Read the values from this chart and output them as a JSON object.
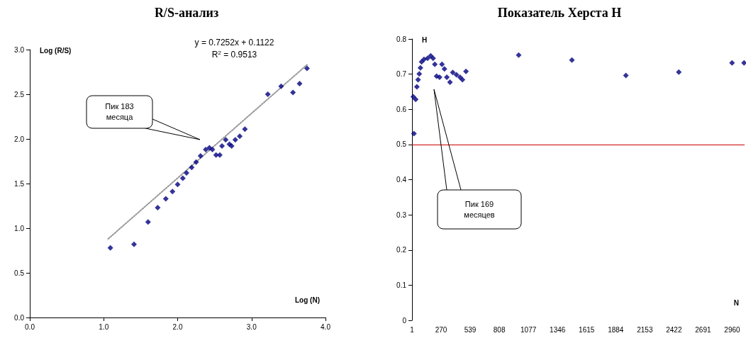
{
  "chart_data": [
    {
      "type": "scatter",
      "title": "R/S-анализ",
      "xlabel": "Log (N)",
      "ylabel": "Log (R/S)",
      "xlim": [
        0,
        4
      ],
      "xticks": [
        {
          "value": 0,
          "label": "0.0"
        },
        {
          "value": 1,
          "label": "1.0"
        },
        {
          "value": 2,
          "label": "2.0"
        },
        {
          "value": 3,
          "label": "3.0"
        },
        {
          "value": 4,
          "label": "4.0"
        }
      ],
      "ylim": [
        0,
        3
      ],
      "yticks": [
        {
          "value": 0,
          "label": "0.0"
        },
        0.5,
        {
          "value": 1,
          "label": "1.0"
        },
        1.5,
        {
          "value": 2,
          "label": "2.0"
        },
        2.5,
        {
          "value": 3,
          "label": "3.0"
        }
      ],
      "grid": false,
      "series": [
        {
          "marker": "diamond",
          "color": "#000080",
          "x": [
            1.09,
            1.41,
            1.6,
            1.73,
            1.84,
            1.93,
            2.0,
            2.07,
            2.12,
            2.19,
            2.25,
            2.31,
            2.38,
            2.43,
            2.47,
            2.52,
            2.57,
            2.6,
            2.65,
            2.7,
            2.73,
            2.78,
            2.84,
            2.91,
            3.22,
            3.4,
            3.56,
            3.65,
            3.75
          ],
          "values": [
            0.78,
            0.82,
            1.07,
            1.23,
            1.33,
            1.41,
            1.49,
            1.56,
            1.62,
            1.68,
            1.74,
            1.81,
            1.88,
            1.9,
            1.88,
            1.82,
            1.82,
            1.92,
            1.99,
            1.94,
            1.92,
            1.99,
            2.03,
            2.11,
            2.5,
            2.59,
            2.52,
            2.62,
            2.79
          ]
        },
        {
          "type": "line",
          "marker": "none",
          "line_style": "dotted",
          "color": "#999999",
          "x": [
            1.06,
            3.75
          ],
          "values": [
            0.88,
            2.83
          ]
        }
      ],
      "annotations": [
        "y = 0.7252x + 0.1122",
        "R$^{2}$ = 0.9513",
        "Пик 183 месяца"
      ]
    },
    {
      "type": "scatter",
      "title": "Показатель Херста H",
      "xlabel": "N",
      "ylabel": "H",
      "xlim": [
        1,
        3075
      ],
      "xticks": [
        1,
        270,
        539,
        808,
        1077,
        1346,
        1615,
        1884,
        2153,
        2422,
        2691,
        2960
      ],
      "ylim": [
        0,
        0.8
      ],
      "yticks": [
        0,
        0.1,
        0.2,
        0.3,
        0.4,
        0.5,
        0.6,
        0.7,
        0.8
      ],
      "grid": false,
      "series": [
        {
          "marker": "diamond",
          "color": "#000080",
          "x": [
            13,
            19,
            35,
            46,
            57,
            68,
            79,
            90,
            112,
            145,
            174,
            196,
            212,
            228,
            256,
            278,
            301,
            323,
            352,
            378,
            412,
            445,
            467,
            500,
            987,
            1479,
            1978,
            2467,
            2959,
            3070
          ],
          "values": [
            0.636,
            0.531,
            0.628,
            0.664,
            0.684,
            0.701,
            0.718,
            0.735,
            0.742,
            0.745,
            0.752,
            0.745,
            0.728,
            0.694,
            0.691,
            0.728,
            0.715,
            0.691,
            0.677,
            0.705,
            0.698,
            0.691,
            0.684,
            0.708,
            0.754,
            0.74,
            0.696,
            0.706,
            0.732,
            0.732
          ]
        }
      ],
      "ref_lines": [
        {
          "axis": "y",
          "value": 0.5,
          "color": "#cc0000"
        }
      ],
      "annotations": [
        "Пик 169 месяцев"
      ]
    }
  ]
}
